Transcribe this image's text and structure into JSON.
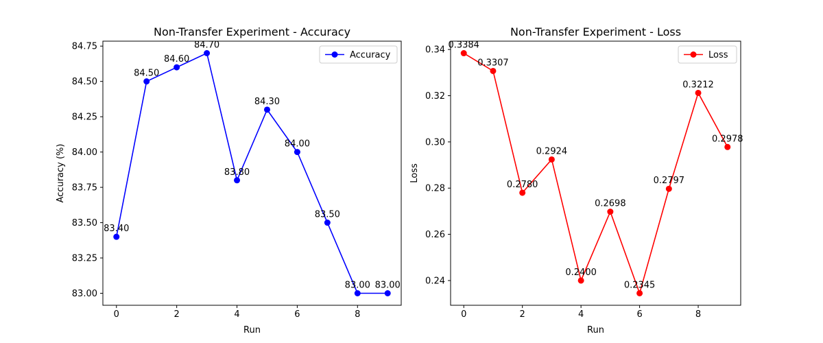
{
  "chart_data": [
    {
      "type": "line",
      "title": "Non-Transfer Experiment - Accuracy",
      "xlabel": "Run",
      "ylabel": "Accuracy (%)",
      "x": [
        0,
        1,
        2,
        3,
        4,
        5,
        6,
        7,
        8,
        9
      ],
      "series": [
        {
          "name": "Accuracy",
          "color": "#0000ff",
          "values": [
            83.4,
            84.5,
            84.6,
            84.7,
            83.8,
            84.3,
            84.0,
            83.5,
            83.0,
            83.0
          ],
          "labels": [
            "83.40",
            "84.50",
            "84.60",
            "84.70",
            "83.80",
            "84.30",
            "84.00",
            "83.50",
            "83.00",
            "83.00"
          ]
        }
      ],
      "xlim": [
        -0.45,
        9.45
      ],
      "ylim": [
        82.915,
        84.785
      ],
      "xticks": [
        0,
        2,
        4,
        6,
        8
      ],
      "xtick_labels": [
        "0",
        "2",
        "4",
        "6",
        "8"
      ],
      "yticks": [
        83.0,
        83.25,
        83.5,
        83.75,
        84.0,
        84.25,
        84.5,
        84.75
      ],
      "ytick_labels": [
        "83.00",
        "83.25",
        "83.50",
        "83.75",
        "84.00",
        "84.25",
        "84.50",
        "84.75"
      ],
      "grid": false,
      "legend_position": "top-right"
    },
    {
      "type": "line",
      "title": "Non-Transfer Experiment - Loss",
      "xlabel": "Run",
      "ylabel": "Loss",
      "x": [
        0,
        1,
        2,
        3,
        4,
        5,
        6,
        7,
        8,
        9
      ],
      "series": [
        {
          "name": "Loss",
          "color": "#ff0000",
          "values": [
            0.3384,
            0.3307,
            0.278,
            0.2924,
            0.24,
            0.2698,
            0.2345,
            0.2797,
            0.3212,
            0.2978
          ],
          "labels": [
            "0.3384",
            "0.3307",
            "0.2780",
            "0.2924",
            "0.2400",
            "0.2698",
            "0.2345",
            "0.2797",
            "0.3212",
            "0.2978"
          ]
        }
      ],
      "xlim": [
        -0.45,
        9.45
      ],
      "ylim": [
        0.2293,
        0.3436
      ],
      "xticks": [
        0,
        2,
        4,
        6,
        8
      ],
      "xtick_labels": [
        "0",
        "2",
        "4",
        "6",
        "8"
      ],
      "yticks": [
        0.24,
        0.26,
        0.28,
        0.3,
        0.32,
        0.34
      ],
      "ytick_labels": [
        "0.24",
        "0.26",
        "0.28",
        "0.30",
        "0.32",
        "0.34"
      ],
      "grid": false,
      "legend_position": "top-right"
    }
  ]
}
